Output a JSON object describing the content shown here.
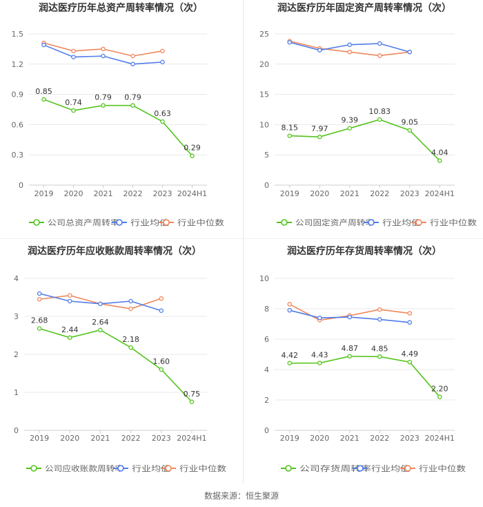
{
  "footer": {
    "source_label": "数据来源：恒生聚源"
  },
  "colors": {
    "company": "#52c41a",
    "industry_avg": "#4e7be9",
    "industry_median": "#f0865a",
    "grid": "#e8e8e8",
    "axis_text": "#666666",
    "title": "#333333"
  },
  "chart_data": [
    {
      "type": "line",
      "title": "润达医疗历年总资产周转率情况（次）",
      "categories": [
        "2019",
        "2020",
        "2021",
        "2022",
        "2023",
        "2024H1"
      ],
      "ylim": [
        0,
        1.5
      ],
      "yticks": [
        "0",
        "0.3",
        "0.6",
        "0.9",
        "1.2",
        "1.5"
      ],
      "series": [
        {
          "name": "公司总资产周转率",
          "values": [
            0.85,
            0.74,
            0.79,
            0.79,
            0.63,
            0.29
          ],
          "labels": [
            "0.85",
            "0.74",
            "0.79",
            "0.79",
            "0.63",
            "0.29"
          ]
        },
        {
          "name": "行业均值",
          "values": [
            1.39,
            1.27,
            1.28,
            1.2,
            1.22,
            null
          ]
        },
        {
          "name": "行业中位数",
          "values": [
            1.41,
            1.33,
            1.35,
            1.28,
            1.33,
            null
          ]
        }
      ]
    },
    {
      "type": "line",
      "title": "润达医疗历年固定资产周转率情况（次）",
      "categories": [
        "2019",
        "2020",
        "2021",
        "2022",
        "2023",
        "2024H1"
      ],
      "ylim": [
        0,
        25
      ],
      "yticks": [
        "0",
        "5",
        "10",
        "15",
        "20",
        "25"
      ],
      "series": [
        {
          "name": "公司固定资产周转率",
          "values": [
            8.15,
            7.97,
            9.39,
            10.83,
            9.05,
            4.04
          ],
          "labels": [
            "8.15",
            "7.97",
            "9.39",
            "10.83",
            "9.05",
            "4.04"
          ]
        },
        {
          "name": "行业均值",
          "values": [
            23.6,
            22.3,
            23.2,
            23.4,
            22.0,
            null
          ]
        },
        {
          "name": "行业中位数",
          "values": [
            23.8,
            22.6,
            22.0,
            21.4,
            22.0,
            null
          ]
        }
      ]
    },
    {
      "type": "line",
      "title": "润达医疗历年应收账款周转率情况（次）",
      "categories": [
        "2019",
        "2020",
        "2021",
        "2022",
        "2023",
        "2024H1"
      ],
      "ylim": [
        0,
        4
      ],
      "yticks": [
        "0",
        "1",
        "2",
        "3",
        "4"
      ],
      "series": [
        {
          "name": "公司应收账款周转率",
          "values": [
            2.68,
            2.44,
            2.64,
            2.18,
            1.6,
            0.75
          ],
          "labels": [
            "2.68",
            "2.44",
            "2.64",
            "2.18",
            "1.60",
            "0.75"
          ]
        },
        {
          "name": "行业均值",
          "values": [
            3.6,
            3.4,
            3.33,
            3.4,
            3.15,
            null
          ]
        },
        {
          "name": "行业中位数",
          "values": [
            3.45,
            3.55,
            3.33,
            3.2,
            3.47,
            null
          ]
        }
      ]
    },
    {
      "type": "line",
      "title": "润达医疗历年存货周转率情况（次）",
      "categories": [
        "2019",
        "2020",
        "2021",
        "2022",
        "2023",
        "2024H1"
      ],
      "ylim": [
        0,
        10
      ],
      "yticks": [
        "0",
        "2",
        "4",
        "6",
        "8",
        "10"
      ],
      "series": [
        {
          "name": "公司存货周转率",
          "values": [
            4.42,
            4.43,
            4.87,
            4.85,
            4.49,
            2.2
          ],
          "labels": [
            "4.42",
            "4.43",
            "4.87",
            "4.85",
            "4.49",
            "2.20"
          ]
        },
        {
          "name": "行业均值",
          "values": [
            7.9,
            7.4,
            7.45,
            7.3,
            7.1,
            null
          ]
        },
        {
          "name": "行业中位数",
          "values": [
            8.3,
            7.25,
            7.55,
            7.95,
            7.7,
            null
          ]
        }
      ]
    }
  ]
}
